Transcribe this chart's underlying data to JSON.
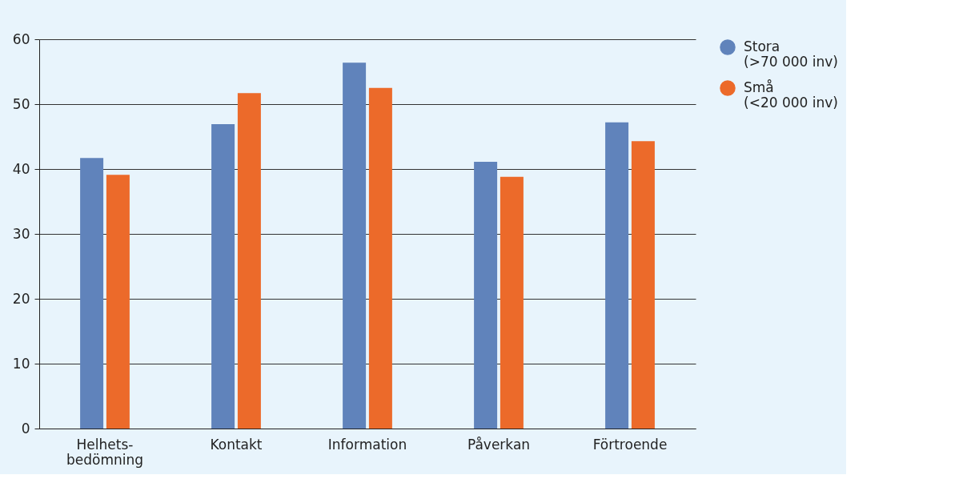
{
  "chart_data": {
    "type": "bar",
    "categories": [
      "Helhets-\nbedömning",
      "Kontakt",
      "Information",
      "Påverkan",
      "Förtroende"
    ],
    "series": [
      {
        "name": "Stora\n(>70 000 inv)",
        "color": "#6083bb",
        "values": [
          41.7,
          46.9,
          56.4,
          41.1,
          47.2
        ]
      },
      {
        "name": "Små\n(<20 000 inv)",
        "color": "#ec6a2a",
        "values": [
          39.1,
          51.7,
          52.5,
          38.8,
          44.3
        ]
      }
    ],
    "ylim": [
      0,
      60
    ],
    "yticks": [
      0,
      10,
      20,
      30,
      40,
      50,
      60
    ],
    "grid": "y",
    "legend": "top right"
  }
}
